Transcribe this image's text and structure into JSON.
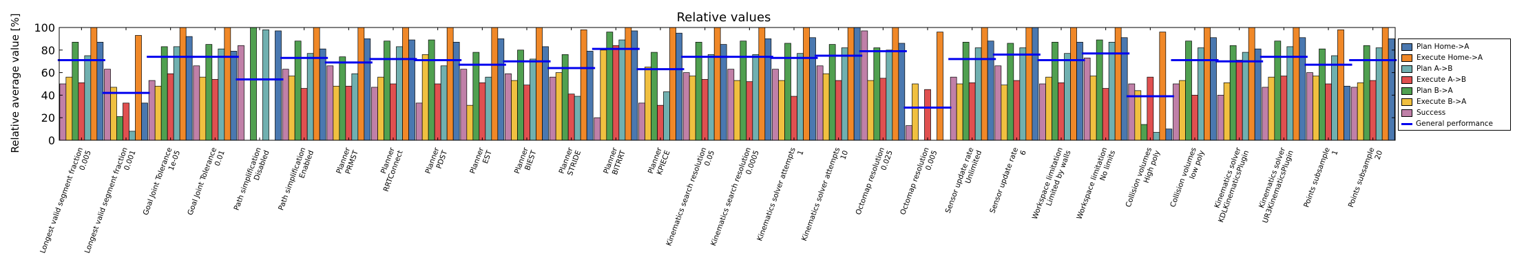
{
  "chart_data": {
    "type": "bar",
    "title": "Relative values",
    "ylabel": "Relative average value [%]",
    "xlabel": "",
    "ylim": [
      0,
      100
    ],
    "yticks": [
      0,
      20,
      40,
      60,
      80,
      100
    ],
    "grid": false,
    "legend_position": "right",
    "categories": [
      [
        "Longest valid segment fraction",
        "0.005"
      ],
      [
        "Longest valid segment fraction",
        "0.001"
      ],
      [
        "Goal Joint Tolerance",
        "1e-05"
      ],
      [
        "Goal Joint Tolerance",
        "0.01"
      ],
      [
        "Path simplification",
        "Disabled"
      ],
      [
        "Path simplification",
        "Enabled"
      ],
      [
        "Planner",
        "PRMST"
      ],
      [
        "Planner",
        "RRTConnect"
      ],
      [
        "Planner",
        "PDST"
      ],
      [
        "Planner",
        "EST"
      ],
      [
        "Planner",
        "BIEST"
      ],
      [
        "Planner",
        "STRIDE"
      ],
      [
        "Planner",
        "BITRRT"
      ],
      [
        "Planner",
        "KPIECE"
      ],
      [
        "Kinematics search resolution",
        "0.05"
      ],
      [
        "Kinematics search resolution",
        "0.0005"
      ],
      [
        "Kinematics solver attempts",
        "1"
      ],
      [
        "Kinematics solver attempts",
        "10"
      ],
      [
        "Octomap resolution",
        "0.025"
      ],
      [
        "Octomap resolution",
        "0.005"
      ],
      [
        "Sensor update rate",
        "Unlimited"
      ],
      [
        "Sensor update rate",
        "6"
      ],
      [
        "Workspace limitation",
        "Limited by walls"
      ],
      [
        "Workspace limitation",
        "No limits"
      ],
      [
        "Collision volumes",
        "High poly"
      ],
      [
        "Collision volumes",
        "low poly"
      ],
      [
        "Kinematics solver",
        "KDLKinematicsPlugin"
      ],
      [
        "Kinematics solver",
        "UR3KinematicsPlugin"
      ],
      [
        "Points subsample",
        "1"
      ],
      [
        "Points subsample",
        "20"
      ]
    ],
    "series": [
      {
        "name": "Success",
        "color": "#c080a8",
        "values": [
          50,
          63,
          53,
          66,
          84,
          63,
          66,
          47,
          33,
          63,
          59,
          56,
          20,
          33,
          60,
          63,
          63,
          66,
          97,
          13,
          56,
          66,
          50,
          73,
          50,
          50,
          40,
          47,
          60,
          47
        ]
      },
      {
        "name": "Execute B->A",
        "color": "#f0c040",
        "values": [
          56,
          47,
          48,
          56,
          0,
          57,
          48,
          56,
          76,
          31,
          53,
          60,
          80,
          65,
          57,
          53,
          53,
          59,
          53,
          50,
          50,
          49,
          56,
          57,
          44,
          53,
          51,
          56,
          57,
          51
        ]
      },
      {
        "name": "Plan B->A",
        "color": "#50a050",
        "values": [
          87,
          21,
          83,
          85,
          100,
          88,
          74,
          88,
          89,
          78,
          80,
          76,
          96,
          78,
          87,
          88,
          86,
          85,
          82,
          0,
          87,
          86,
          87,
          89,
          14,
          88,
          84,
          88,
          81,
          84
        ]
      },
      {
        "name": "Execute A->B",
        "color": "#e05050",
        "values": [
          51,
          33,
          59,
          54,
          0,
          46,
          48,
          50,
          50,
          51,
          49,
          41,
          84,
          31,
          54,
          52,
          39,
          53,
          55,
          45,
          51,
          53,
          51,
          46,
          56,
          40,
          71,
          57,
          50,
          53
        ]
      },
      {
        "name": "Plan A->B",
        "color": "#70b0b0",
        "values": [
          75,
          8,
          83,
          81,
          98,
          77,
          59,
          83,
          66,
          56,
          72,
          39,
          89,
          43,
          76,
          76,
          77,
          82,
          80,
          0,
          82,
          82,
          77,
          87,
          7,
          82,
          78,
          83,
          75,
          82
        ]
      },
      {
        "name": "Execute Home->A",
        "color": "#f08828",
        "values": [
          100,
          93,
          100,
          100,
          0,
          100,
          100,
          100,
          100,
          100,
          100,
          98,
          100,
          100,
          100,
          100,
          100,
          100,
          100,
          96,
          100,
          100,
          100,
          100,
          96,
          100,
          100,
          100,
          98,
          100
        ]
      },
      {
        "name": "Plan Home->A",
        "color": "#4a78b0",
        "values": [
          87,
          33,
          92,
          79,
          97,
          81,
          90,
          89,
          87,
          90,
          83,
          79,
          97,
          95,
          85,
          90,
          91,
          100,
          86,
          0,
          88,
          100,
          87,
          91,
          10,
          91,
          81,
          91,
          48,
          90
        ]
      }
    ],
    "general_performance": {
      "name": "General performance",
      "color": "#0000ee",
      "values": [
        71,
        42,
        74,
        74,
        54,
        73,
        69,
        72,
        71,
        67,
        70,
        64,
        81,
        63,
        74,
        74,
        73,
        75,
        79,
        29,
        72,
        76,
        71,
        77,
        39,
        71,
        70,
        74,
        67,
        71
      ]
    }
  }
}
